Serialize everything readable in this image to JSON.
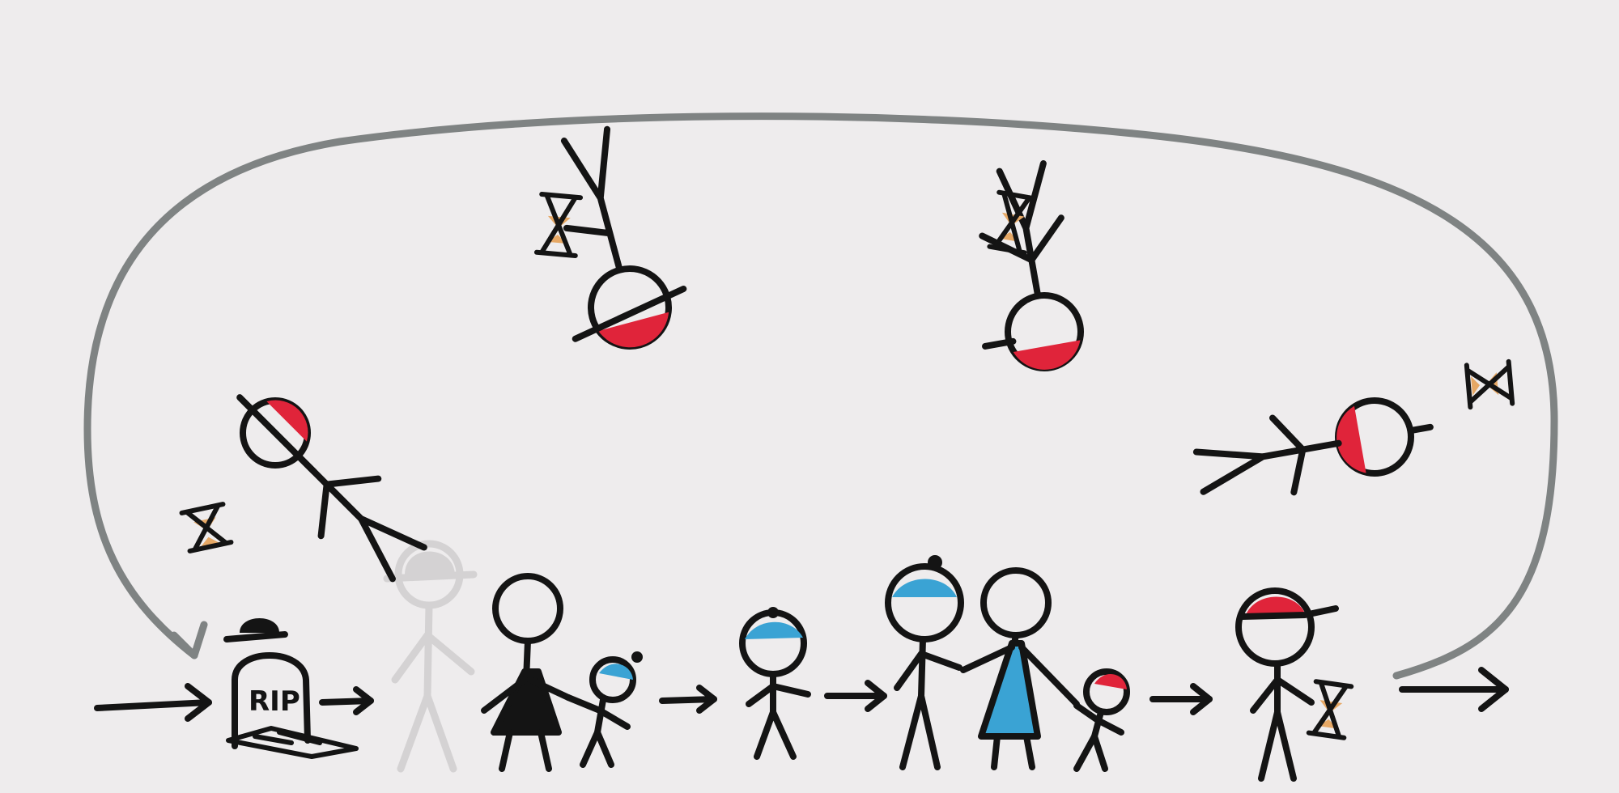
{
  "tombstone": {
    "inscription": "RIP"
  },
  "colors": {
    "background": "#eeeced",
    "ink": "#141414",
    "cycle_arrow": "#7f8383",
    "ghost": "#d4d2d3",
    "red_fill": "#e0243a",
    "blue_fill": "#3aa3d4",
    "sand": "#e6a865"
  }
}
